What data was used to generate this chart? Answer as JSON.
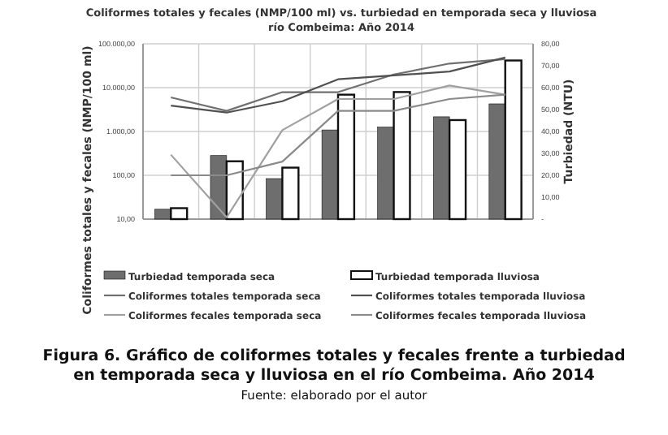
{
  "chart_data": {
    "type": "bar",
    "title": "Coliformes totales y fecales (NMP/100 ml) vs. turbiedad en temporada seca y lluviosa\nrío Combeima: Año 2014",
    "ylabel": "Coliformes totales y fecales (NMP/100 ml)",
    "y2label": "Turbiedad (NTU)",
    "categories": [
      null,
      null,
      null,
      null,
      null,
      null,
      null
    ],
    "series": [
      {
        "name": "Turbiedad temporada seca",
        "axis": "y2",
        "color": "#6e6e6e",
        "values": [
          4.5,
          29,
          18.5,
          40.7,
          42,
          46.7,
          52.6
        ]
      },
      {
        "name": "Turbiedad temporada lluviosa",
        "axis": "y2",
        "color": "#ffffff",
        "values": [
          5,
          26.4,
          23.5,
          56.8,
          58,
          45.2,
          72.4
        ]
      },
      {
        "name": "Coliformes totales temporada seca",
        "type": "line",
        "color": "#707070",
        "values": [
          6000,
          2950,
          7900,
          7900,
          20000,
          35500,
          44700
        ]
      },
      {
        "name": "Coliformes totales temporada lluviosa",
        "type": "line",
        "color": "#505050",
        "values": [
          3900,
          2700,
          4900,
          15500,
          19000,
          23300,
          48600
        ]
      },
      {
        "name": "Coliformes fecales temporada seca",
        "type": "line",
        "color": "#a0a0a0",
        "values": [
          295,
          11,
          1070,
          5500,
          5500,
          11200,
          6900
        ]
      },
      {
        "name": "Coliformes fecales temporada lluviosa",
        "type": "line",
        "color": "#8a8a8a",
        "values": [
          100,
          100,
          205,
          2950,
          2950,
          5500,
          6900
        ]
      }
    ],
    "log": "y",
    "ylim": [
      10,
      100000
    ],
    "yticks": [
      {
        "value": 10,
        "label": "10,00"
      },
      {
        "value": 100,
        "label": "100,00"
      },
      {
        "value": 1000,
        "label": "1.000,00"
      },
      {
        "value": 10000,
        "label": "10.000,00"
      },
      {
        "value": 100000,
        "label": "100.000,00"
      }
    ],
    "y2lim": [
      0,
      80
    ],
    "y2ticks": [
      {
        "value": 0,
        "label": "-"
      },
      {
        "value": 10,
        "label": "10,00"
      },
      {
        "value": 20,
        "label": "20,00"
      },
      {
        "value": 30,
        "label": "30,00"
      },
      {
        "value": 40,
        "label": "40,00"
      },
      {
        "value": 50,
        "label": "50,00"
      },
      {
        "value": 60,
        "label": "60,00"
      },
      {
        "value": 70,
        "label": "70,00"
      },
      {
        "value": 80,
        "label": "80,00"
      }
    ],
    "grid": true,
    "legend": "bottom",
    "marker": "none",
    "annotations": [
      "Figura 6. Gráfico de coliformes totales y fecales frente a turbiedad en temporada seca y lluviosa en el río Combeima. Año 2014",
      "Fuente: elaborado por el autor"
    ]
  }
}
